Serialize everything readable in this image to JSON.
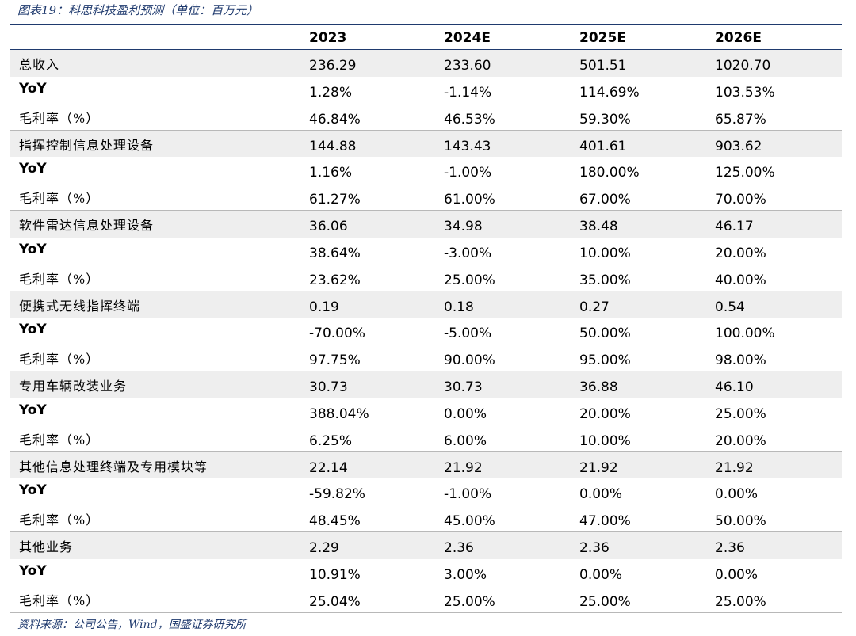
{
  "caption": "图表19：科思科技盈利预测（单位：百万元）",
  "source": "资料来源：公司公告，Wind，国盛证券研究所",
  "columns": [
    "",
    "2023",
    "2024E",
    "2025E",
    "2026E"
  ],
  "groups": [
    {
      "rows": [
        {
          "label": "总收入",
          "values": [
            "236.29",
            "233.60",
            "501.51",
            "1020.70"
          ]
        },
        {
          "label": "YoY",
          "values": [
            "1.28%",
            "-1.14%",
            "114.69%",
            "103.53%"
          ]
        },
        {
          "label": "毛利率（%）",
          "values": [
            "46.84%",
            "46.53%",
            "59.30%",
            "65.87%"
          ]
        }
      ]
    },
    {
      "rows": [
        {
          "label": "指挥控制信息处理设备",
          "values": [
            "144.88",
            "143.43",
            "401.61",
            "903.62"
          ]
        },
        {
          "label": "YoY",
          "values": [
            "1.16%",
            "-1.00%",
            "180.00%",
            "125.00%"
          ]
        },
        {
          "label": "毛利率（%）",
          "values": [
            "61.27%",
            "61.00%",
            "67.00%",
            "70.00%"
          ]
        }
      ]
    },
    {
      "rows": [
        {
          "label": "软件雷达信息处理设备",
          "values": [
            "36.06",
            "34.98",
            "38.48",
            "46.17"
          ]
        },
        {
          "label": "YoY",
          "values": [
            "38.64%",
            "-3.00%",
            "10.00%",
            "20.00%"
          ]
        },
        {
          "label": "毛利率（%）",
          "values": [
            "23.62%",
            "25.00%",
            "35.00%",
            "40.00%"
          ]
        }
      ]
    },
    {
      "rows": [
        {
          "label": "便携式无线指挥终端",
          "values": [
            "0.19",
            "0.18",
            "0.27",
            "0.54"
          ]
        },
        {
          "label": "YoY",
          "values": [
            "-70.00%",
            "-5.00%",
            "50.00%",
            "100.00%"
          ]
        },
        {
          "label": "毛利率（%）",
          "values": [
            "97.75%",
            "90.00%",
            "95.00%",
            "98.00%"
          ]
        }
      ]
    },
    {
      "rows": [
        {
          "label": "专用车辆改装业务",
          "values": [
            "30.73",
            "30.73",
            "36.88",
            "46.10"
          ]
        },
        {
          "label": "YoY",
          "values": [
            "388.04%",
            "0.00%",
            "20.00%",
            "25.00%"
          ]
        },
        {
          "label": "毛利率（%）",
          "values": [
            "6.25%",
            "6.00%",
            "10.00%",
            "20.00%"
          ]
        }
      ]
    },
    {
      "rows": [
        {
          "label": "其他信息处理终端及专用模块等",
          "values": [
            "22.14",
            "21.92",
            "21.92",
            "21.92"
          ]
        },
        {
          "label": "YoY",
          "values": [
            "-59.82%",
            "-1.00%",
            "0.00%",
            "0.00%"
          ]
        },
        {
          "label": "毛利率（%）",
          "values": [
            "48.45%",
            "45.00%",
            "47.00%",
            "50.00%"
          ]
        }
      ]
    },
    {
      "rows": [
        {
          "label": "其他业务",
          "values": [
            "2.29",
            "2.36",
            "2.36",
            "2.36"
          ]
        },
        {
          "label": "YoY",
          "values": [
            "10.91%",
            "3.00%",
            "0.00%",
            "0.00%"
          ]
        },
        {
          "label": "毛利率（%）",
          "values": [
            "25.04%",
            "25.00%",
            "25.00%",
            "25.00%"
          ]
        }
      ]
    }
  ]
}
